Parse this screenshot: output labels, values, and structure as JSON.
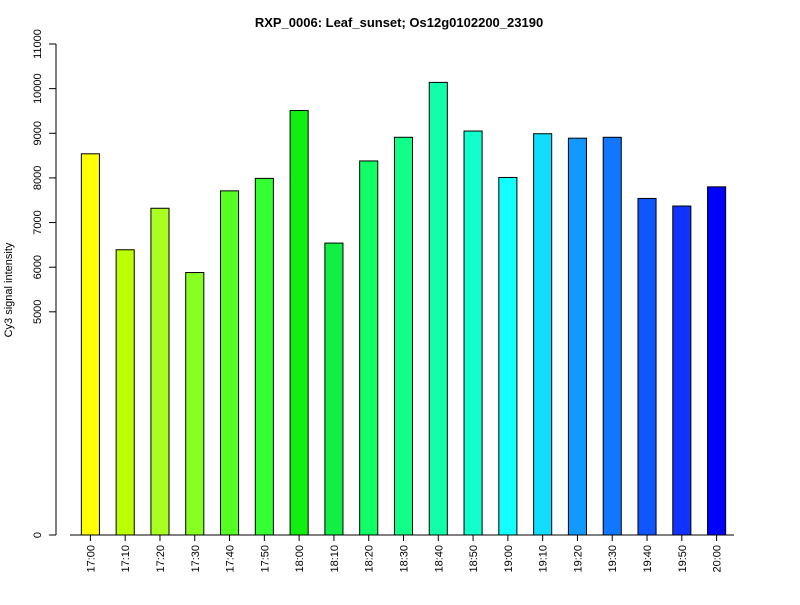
{
  "chart_data": {
    "type": "bar",
    "title": "RXP_0006: Leaf_sunset; Os12g0102200_23190",
    "xlabel": "",
    "ylabel": "Cy3 signal intensity",
    "ylim": [
      0,
      11000
    ],
    "y_ticks": [
      "0",
      "5000",
      "6000",
      "7000",
      "8000",
      "9000",
      "10000",
      "11000"
    ],
    "y_tick_values": [
      0,
      5000,
      6000,
      7000,
      8000,
      9000,
      10000,
      11000
    ],
    "grid": false,
    "categories": [
      "17:00",
      "17:10",
      "17:20",
      "17:30",
      "17:40",
      "17:50",
      "18:00",
      "18:10",
      "18:20",
      "18:30",
      "18:40",
      "18:50",
      "19:00",
      "19:10",
      "19:20",
      "19:30",
      "19:40",
      "19:50",
      "20:00"
    ],
    "values": [
      8540,
      6390,
      7320,
      5880,
      7710,
      7990,
      9510,
      6540,
      8380,
      8910,
      10140,
      9050,
      8010,
      8990,
      8890,
      8910,
      7540,
      7370,
      7800
    ],
    "colors": [
      "#ffff00",
      "#bbff00",
      "#aaff22",
      "#88ff22",
      "#55ff22",
      "#33ff33",
      "#11ee11",
      "#11ee44",
      "#11ff66",
      "#11ff88",
      "#11ffaa",
      "#11ffcc",
      "#11ffff",
      "#11ddff",
      "#1199ff",
      "#1177ff",
      "#1155ff",
      "#1133ff",
      "#0000ff"
    ]
  }
}
